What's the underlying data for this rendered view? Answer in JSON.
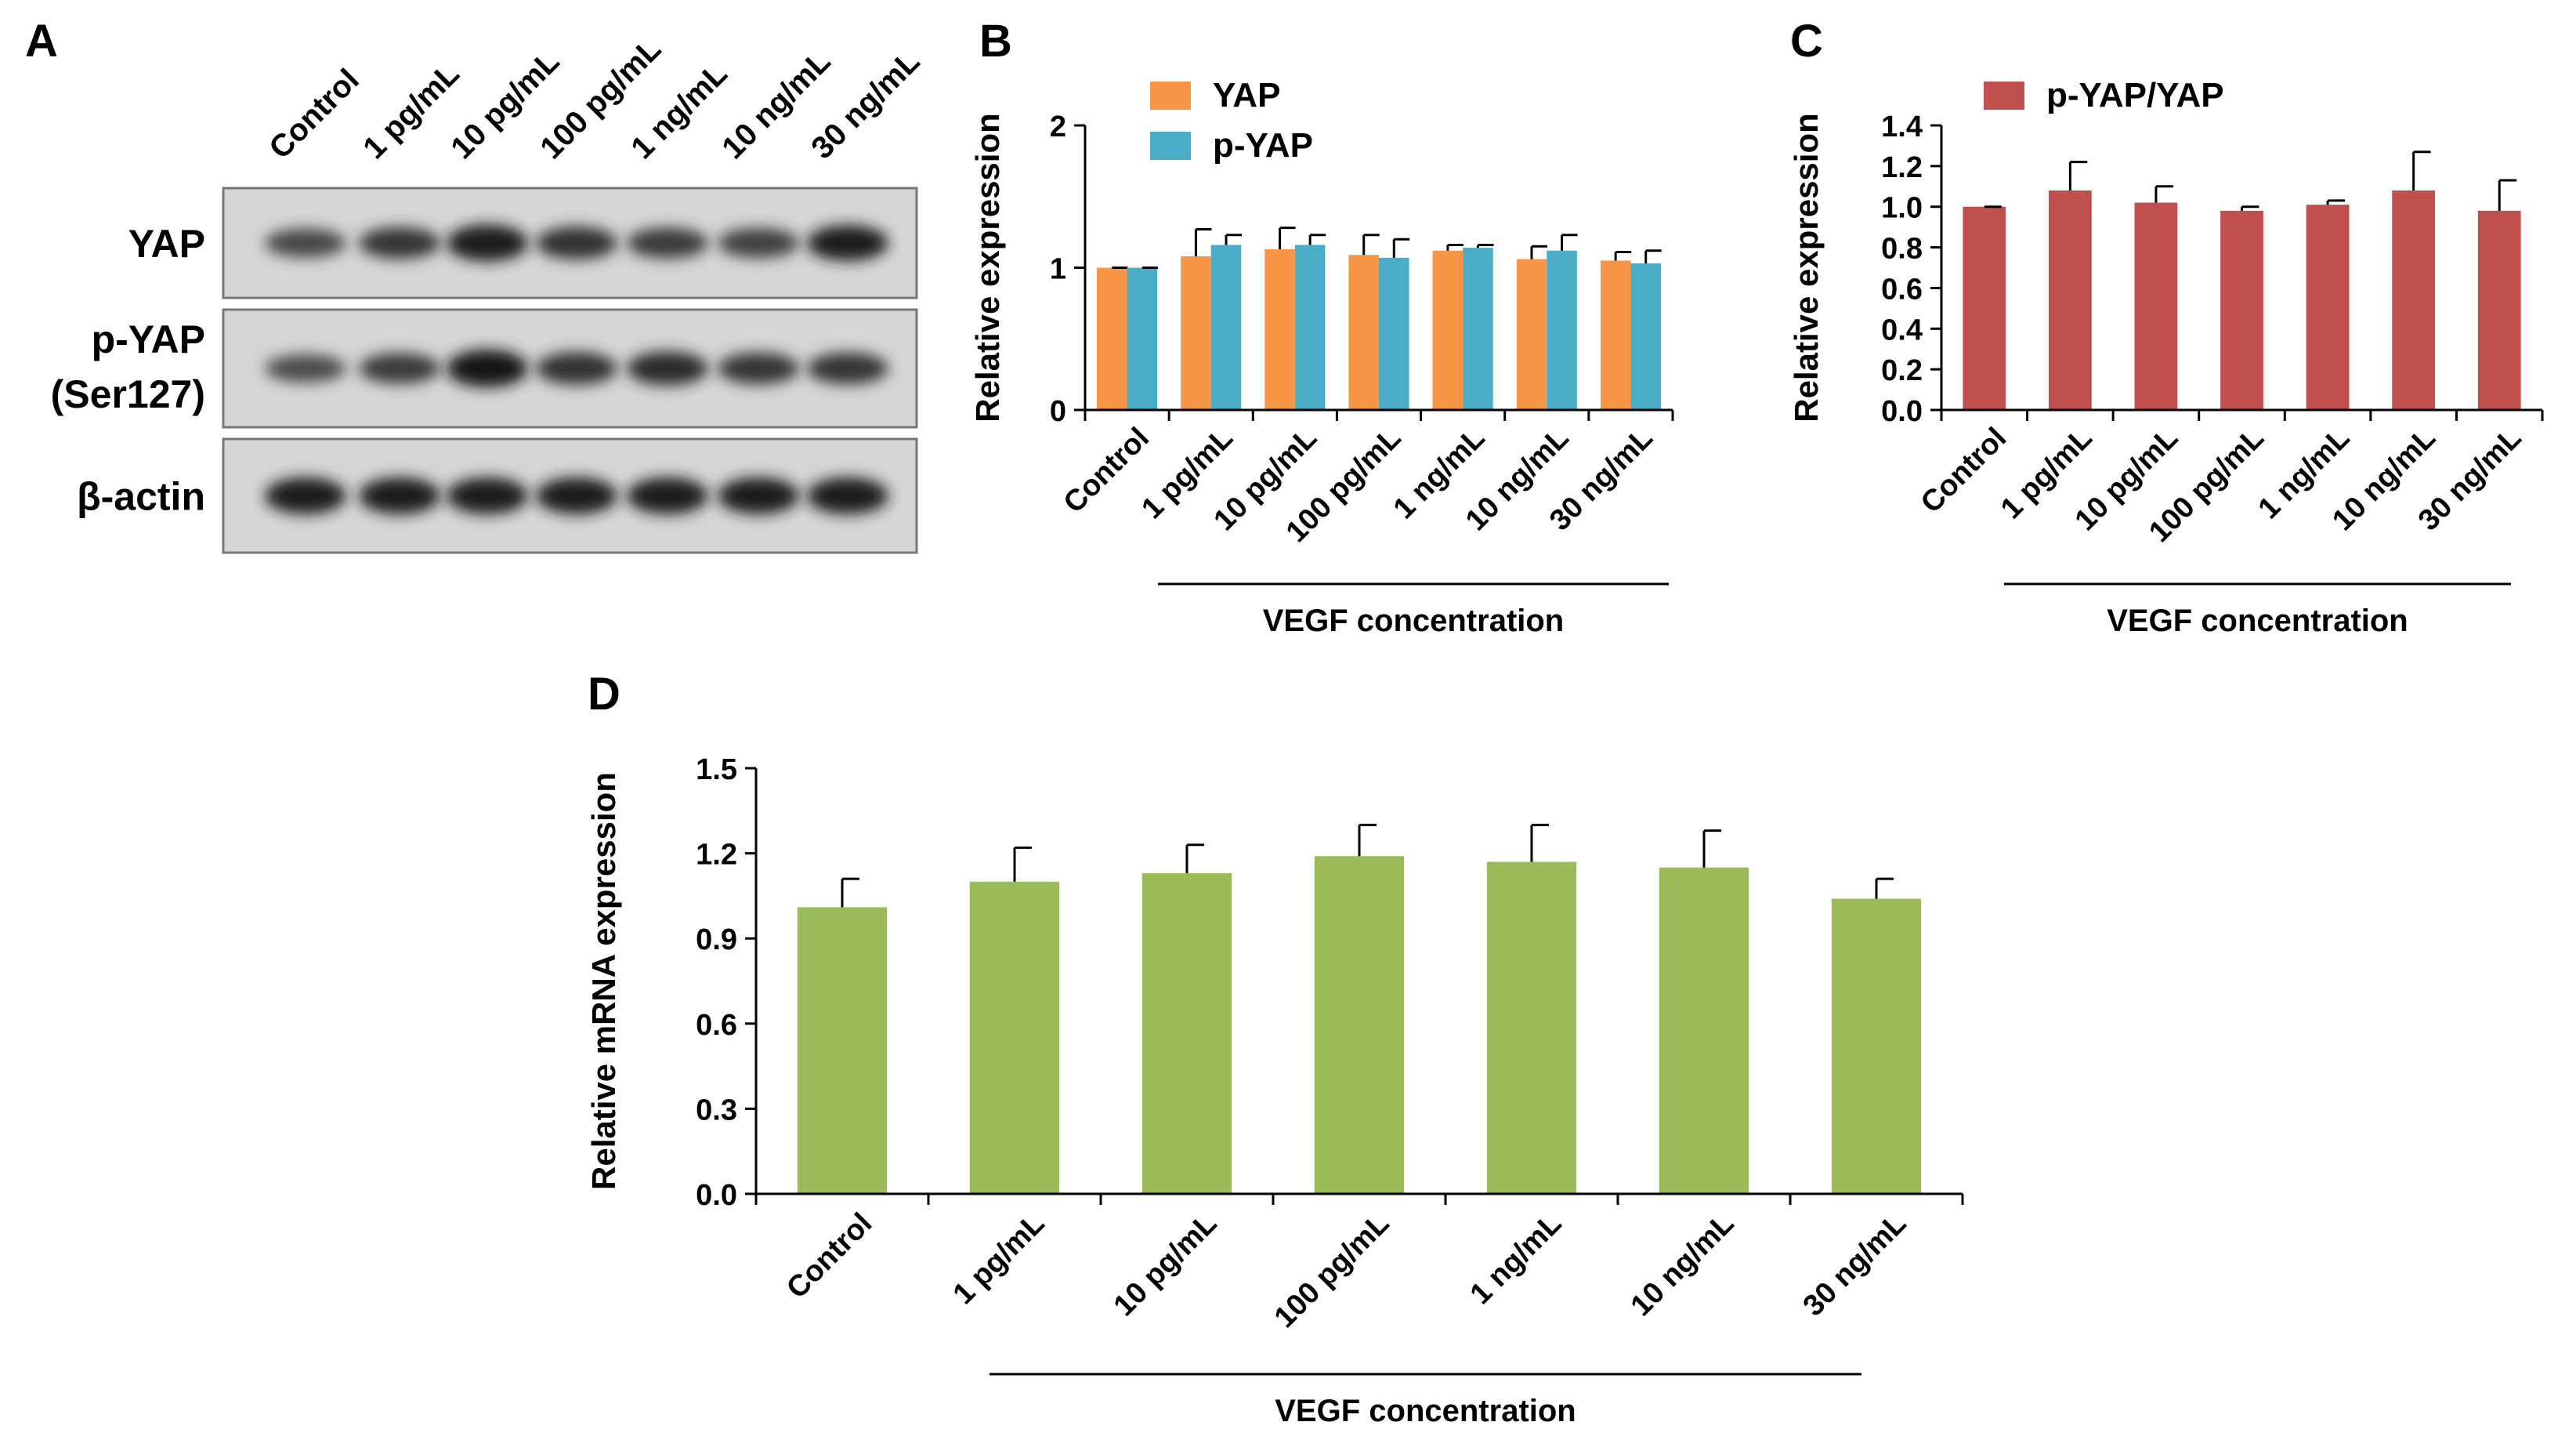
{
  "panels": {
    "A": "A",
    "B": "B",
    "C": "C",
    "D": "D"
  },
  "blot": {
    "lanes": [
      "Control",
      "1 pg/mL",
      "10 pg/mL",
      "100 pg/mL",
      "1 ng/mL",
      "10 ng/mL",
      "30 ng/mL"
    ],
    "rows": [
      {
        "label": "YAP",
        "intensity": [
          0.55,
          0.7,
          0.95,
          0.75,
          0.65,
          0.6,
          0.9
        ]
      },
      {
        "label": "p-YAP",
        "sublabel": "(Ser127)",
        "intensity": [
          0.5,
          0.65,
          1.0,
          0.75,
          0.8,
          0.7,
          0.7
        ]
      },
      {
        "label": "β-actin",
        "intensity": [
          0.95,
          0.95,
          0.95,
          0.95,
          0.95,
          0.95,
          0.95
        ]
      }
    ]
  },
  "colors": {
    "yap": "#F79646",
    "pyap": "#4BACC6",
    "ratio": "#C0504D",
    "mrna": "#9BBB59",
    "axis": "#000000"
  },
  "chart_data": [
    {
      "id": "B",
      "type": "bar",
      "categories": [
        "Control",
        "1 pg/mL",
        "10 pg/mL",
        "100 pg/mL",
        "1 ng/mL",
        "10 ng/mL",
        "30 ng/mL"
      ],
      "series": [
        {
          "name": "YAP",
          "values": [
            1.0,
            1.08,
            1.13,
            1.09,
            1.12,
            1.06,
            1.05
          ],
          "errors": [
            0.0,
            0.19,
            0.15,
            0.14,
            0.04,
            0.09,
            0.06
          ]
        },
        {
          "name": "p-YAP",
          "values": [
            1.0,
            1.16,
            1.16,
            1.07,
            1.14,
            1.12,
            1.03
          ],
          "errors": [
            0.0,
            0.07,
            0.07,
            0.13,
            0.02,
            0.11,
            0.09
          ]
        }
      ],
      "ylabel": "Relative expression",
      "xlabel": "VEGF concentration",
      "ylim": [
        0,
        2
      ],
      "yticks": [
        "0",
        "1",
        "2"
      ],
      "legend": "top-left"
    },
    {
      "id": "C",
      "type": "bar",
      "categories": [
        "Control",
        "1 pg/mL",
        "10 pg/mL",
        "100 pg/mL",
        "1 ng/mL",
        "10 ng/mL",
        "30 ng/mL"
      ],
      "series": [
        {
          "name": "p-YAP/YAP",
          "values": [
            1.0,
            1.08,
            1.02,
            0.98,
            1.01,
            1.08,
            0.98
          ],
          "errors": [
            0.0,
            0.14,
            0.08,
            0.02,
            0.02,
            0.19,
            0.15
          ]
        }
      ],
      "ylabel": "Relative expression",
      "xlabel": "VEGF concentration",
      "ylim": [
        0,
        1.4
      ],
      "yticks": [
        "0.0",
        "0.2",
        "0.4",
        "0.6",
        "0.8",
        "1.0",
        "1.2",
        "1.4"
      ],
      "legend": "top-left"
    },
    {
      "id": "D",
      "type": "bar",
      "categories": [
        "Control",
        "1 pg/mL",
        "10 pg/mL",
        "100 pg/mL",
        "1 ng/mL",
        "10 ng/mL",
        "30 ng/mL"
      ],
      "series": [
        {
          "name": "mRNA",
          "values": [
            1.01,
            1.1,
            1.13,
            1.19,
            1.17,
            1.15,
            1.04
          ],
          "errors": [
            0.1,
            0.12,
            0.1,
            0.11,
            0.13,
            0.13,
            0.07
          ]
        }
      ],
      "ylabel": "Relative mRNA expression",
      "xlabel": "VEGF concentration",
      "ylim": [
        0,
        1.5
      ],
      "yticks": [
        "0.0",
        "0.3",
        "0.6",
        "0.9",
        "1.2",
        "1.5"
      ]
    }
  ]
}
